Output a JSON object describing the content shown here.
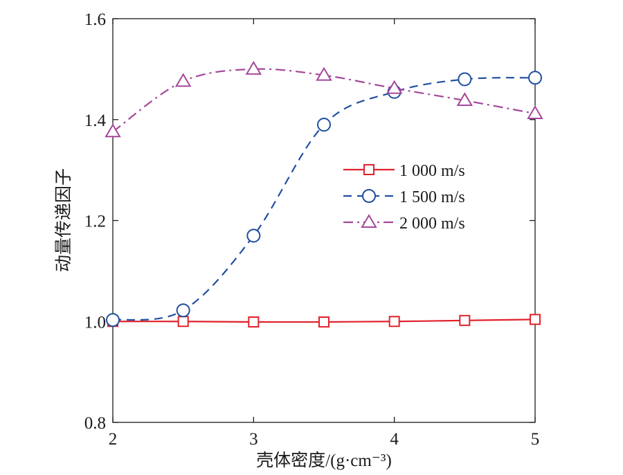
{
  "chart_data": {
    "type": "line",
    "xlabel": "壳体密度/(g·cm⁻³)",
    "ylabel": "动量传递因子",
    "xlim": [
      2,
      5
    ],
    "ylim": [
      0.8,
      1.6
    ],
    "xticks": [
      2,
      3,
      4,
      5
    ],
    "yticks": [
      0.8,
      1.0,
      1.2,
      1.4,
      1.6
    ],
    "xtick_labels": [
      "2",
      "3",
      "4",
      "5"
    ],
    "ytick_labels": [
      "0.8",
      "1.0",
      "1.2",
      "1.4",
      "1.6"
    ],
    "grid": false,
    "legend_position": "center-right",
    "x": [
      2,
      2.5,
      3,
      3.5,
      4,
      4.5,
      5
    ],
    "series": [
      {
        "name": "1 000 m/s",
        "values": [
          1.0,
          1.0,
          0.999,
          0.999,
          1.0,
          1.002,
          1.004
        ],
        "color": "#e0212a",
        "marker": "square",
        "line_style": "solid"
      },
      {
        "name": "1 500 m/s",
        "values": [
          1.003,
          1.022,
          1.17,
          1.39,
          1.455,
          1.48,
          1.483
        ],
        "color": "#1f4fa0",
        "marker": "circle",
        "line_style": "dashed"
      },
      {
        "name": "2 000 m/s",
        "values": [
          1.376,
          1.476,
          1.5,
          1.488,
          1.462,
          1.438,
          1.412
        ],
        "color": "#a5479a",
        "marker": "triangle",
        "line_style": "dashdot"
      }
    ]
  }
}
